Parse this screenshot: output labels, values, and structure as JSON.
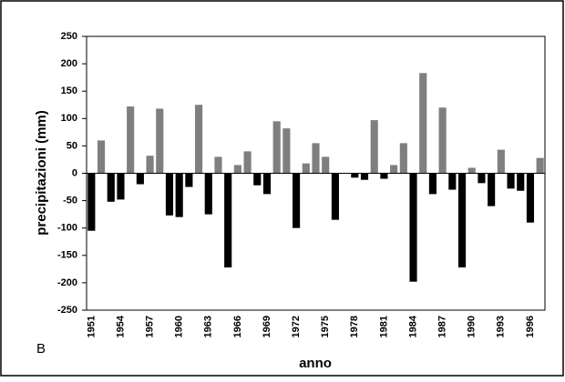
{
  "chart_data": {
    "type": "bar",
    "panel_label": "B",
    "xlabel": "anno",
    "ylabel": "precipitazioni (mm)",
    "categories": [
      "1951",
      null,
      null,
      "1954",
      null,
      null,
      "1957",
      null,
      null,
      "1960",
      null,
      null,
      "1963",
      null,
      null,
      "1966",
      null,
      null,
      "1969",
      null,
      null,
      "1972",
      null,
      null,
      "1975",
      null,
      null,
      "1978",
      null,
      null,
      "1981",
      null,
      null,
      "1984",
      null,
      null,
      "1987",
      null,
      null,
      "1990",
      null,
      null,
      "1993",
      null,
      null,
      "1996",
      null
    ],
    "values": [
      -105,
      60,
      -52,
      -48,
      122,
      -20,
      32,
      118,
      -77,
      -80,
      -25,
      125,
      -75,
      30,
      -172,
      15,
      40,
      -22,
      -38,
      95,
      82,
      -100,
      18,
      55,
      30,
      -85,
      0,
      -8,
      -12,
      97,
      -10,
      15,
      55,
      -198,
      183,
      -38,
      120,
      -30,
      -172,
      10,
      -18,
      -60,
      43,
      -28,
      -32,
      -90,
      28
    ],
    "positive_color": "#7f7f7f",
    "negative_color": "#000000",
    "ylim": [
      -250,
      250
    ],
    "yticks": [
      -250,
      -200,
      -150,
      -100,
      -50,
      0,
      50,
      100,
      150,
      200,
      250
    ],
    "grid": false
  }
}
